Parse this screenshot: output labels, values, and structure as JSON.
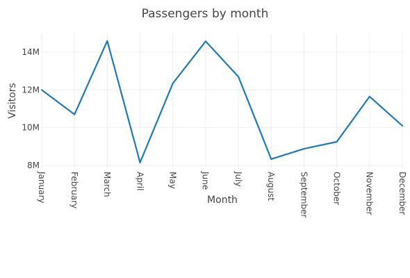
{
  "chart_data": {
    "type": "line",
    "title": "Passengers by month",
    "xlabel": "Month",
    "ylabel": "Visitors",
    "categories": [
      "January",
      "February",
      "March",
      "April",
      "May",
      "June",
      "July",
      "August",
      "September",
      "October",
      "November",
      "December"
    ],
    "series": [
      {
        "values": [
          12000000,
          10700000,
          14600000,
          8150000,
          12350000,
          14580000,
          12700000,
          8330000,
          8880000,
          9250000,
          11650000,
          10100000
        ]
      }
    ],
    "ylim": [
      7850000,
      15000000
    ],
    "yticks": [
      8000000,
      10000000,
      12000000,
      14000000
    ],
    "ytick_labels": [
      "8M",
      "10M",
      "12M",
      "14M"
    ],
    "grid": true,
    "line_color": "#1f77b4"
  }
}
